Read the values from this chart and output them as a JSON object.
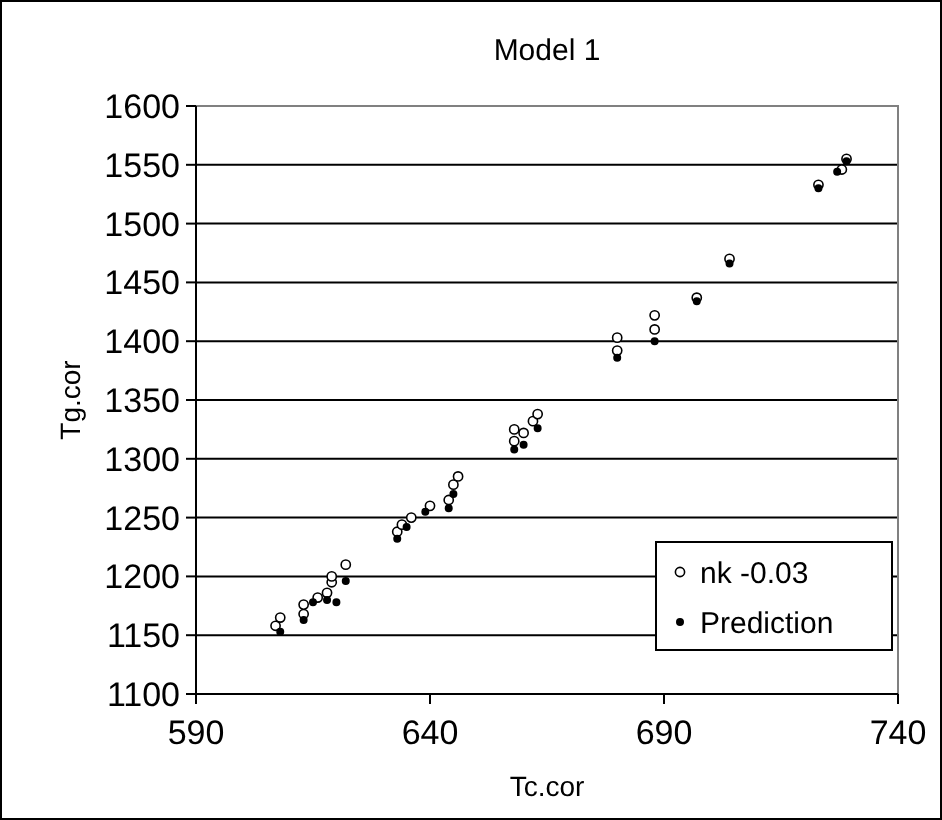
{
  "chart_data": {
    "type": "scatter",
    "title": "Model 1",
    "xlabel": "Tc.cor",
    "ylabel": "Tg.cor",
    "xlim": [
      590,
      740
    ],
    "xticks": [
      590,
      640,
      690,
      740
    ],
    "ylim": [
      1100,
      1600
    ],
    "yticks": [
      1100,
      1150,
      1200,
      1250,
      1300,
      1350,
      1400,
      1450,
      1500,
      1550,
      1600
    ],
    "grid": "y",
    "legend": "bottom right",
    "marker": "circle",
    "series": [
      {
        "name": "nk -0.03",
        "color": "#000000",
        "x": [
          607,
          608,
          613,
          613,
          616,
          618,
          619,
          619,
          622,
          633,
          634,
          636,
          640,
          644,
          645,
          646,
          658,
          658,
          660,
          662,
          663,
          680,
          680,
          688,
          688,
          697,
          704,
          723,
          728,
          729
        ],
        "values": [
          1158,
          1165,
          1168,
          1176,
          1182,
          1186,
          1195,
          1200,
          1210,
          1238,
          1244,
          1250,
          1260,
          1265,
          1278,
          1285,
          1315,
          1325,
          1322,
          1332,
          1338,
          1392,
          1403,
          1410,
          1422,
          1437,
          1470,
          1533,
          1546,
          1555
        ]
      },
      {
        "name": "Prediction",
        "color": "#000000",
        "x": [
          608,
          613,
          615,
          618,
          620,
          622,
          633,
          635,
          639,
          644,
          645,
          658,
          660,
          663,
          680,
          688,
          697,
          704,
          723,
          727,
          729
        ],
        "values": [
          1153,
          1163,
          1178,
          1180,
          1178,
          1196,
          1232,
          1242,
          1255,
          1258,
          1270,
          1308,
          1312,
          1326,
          1386,
          1400,
          1434,
          1466,
          1530,
          1544,
          1553
        ]
      }
    ]
  }
}
